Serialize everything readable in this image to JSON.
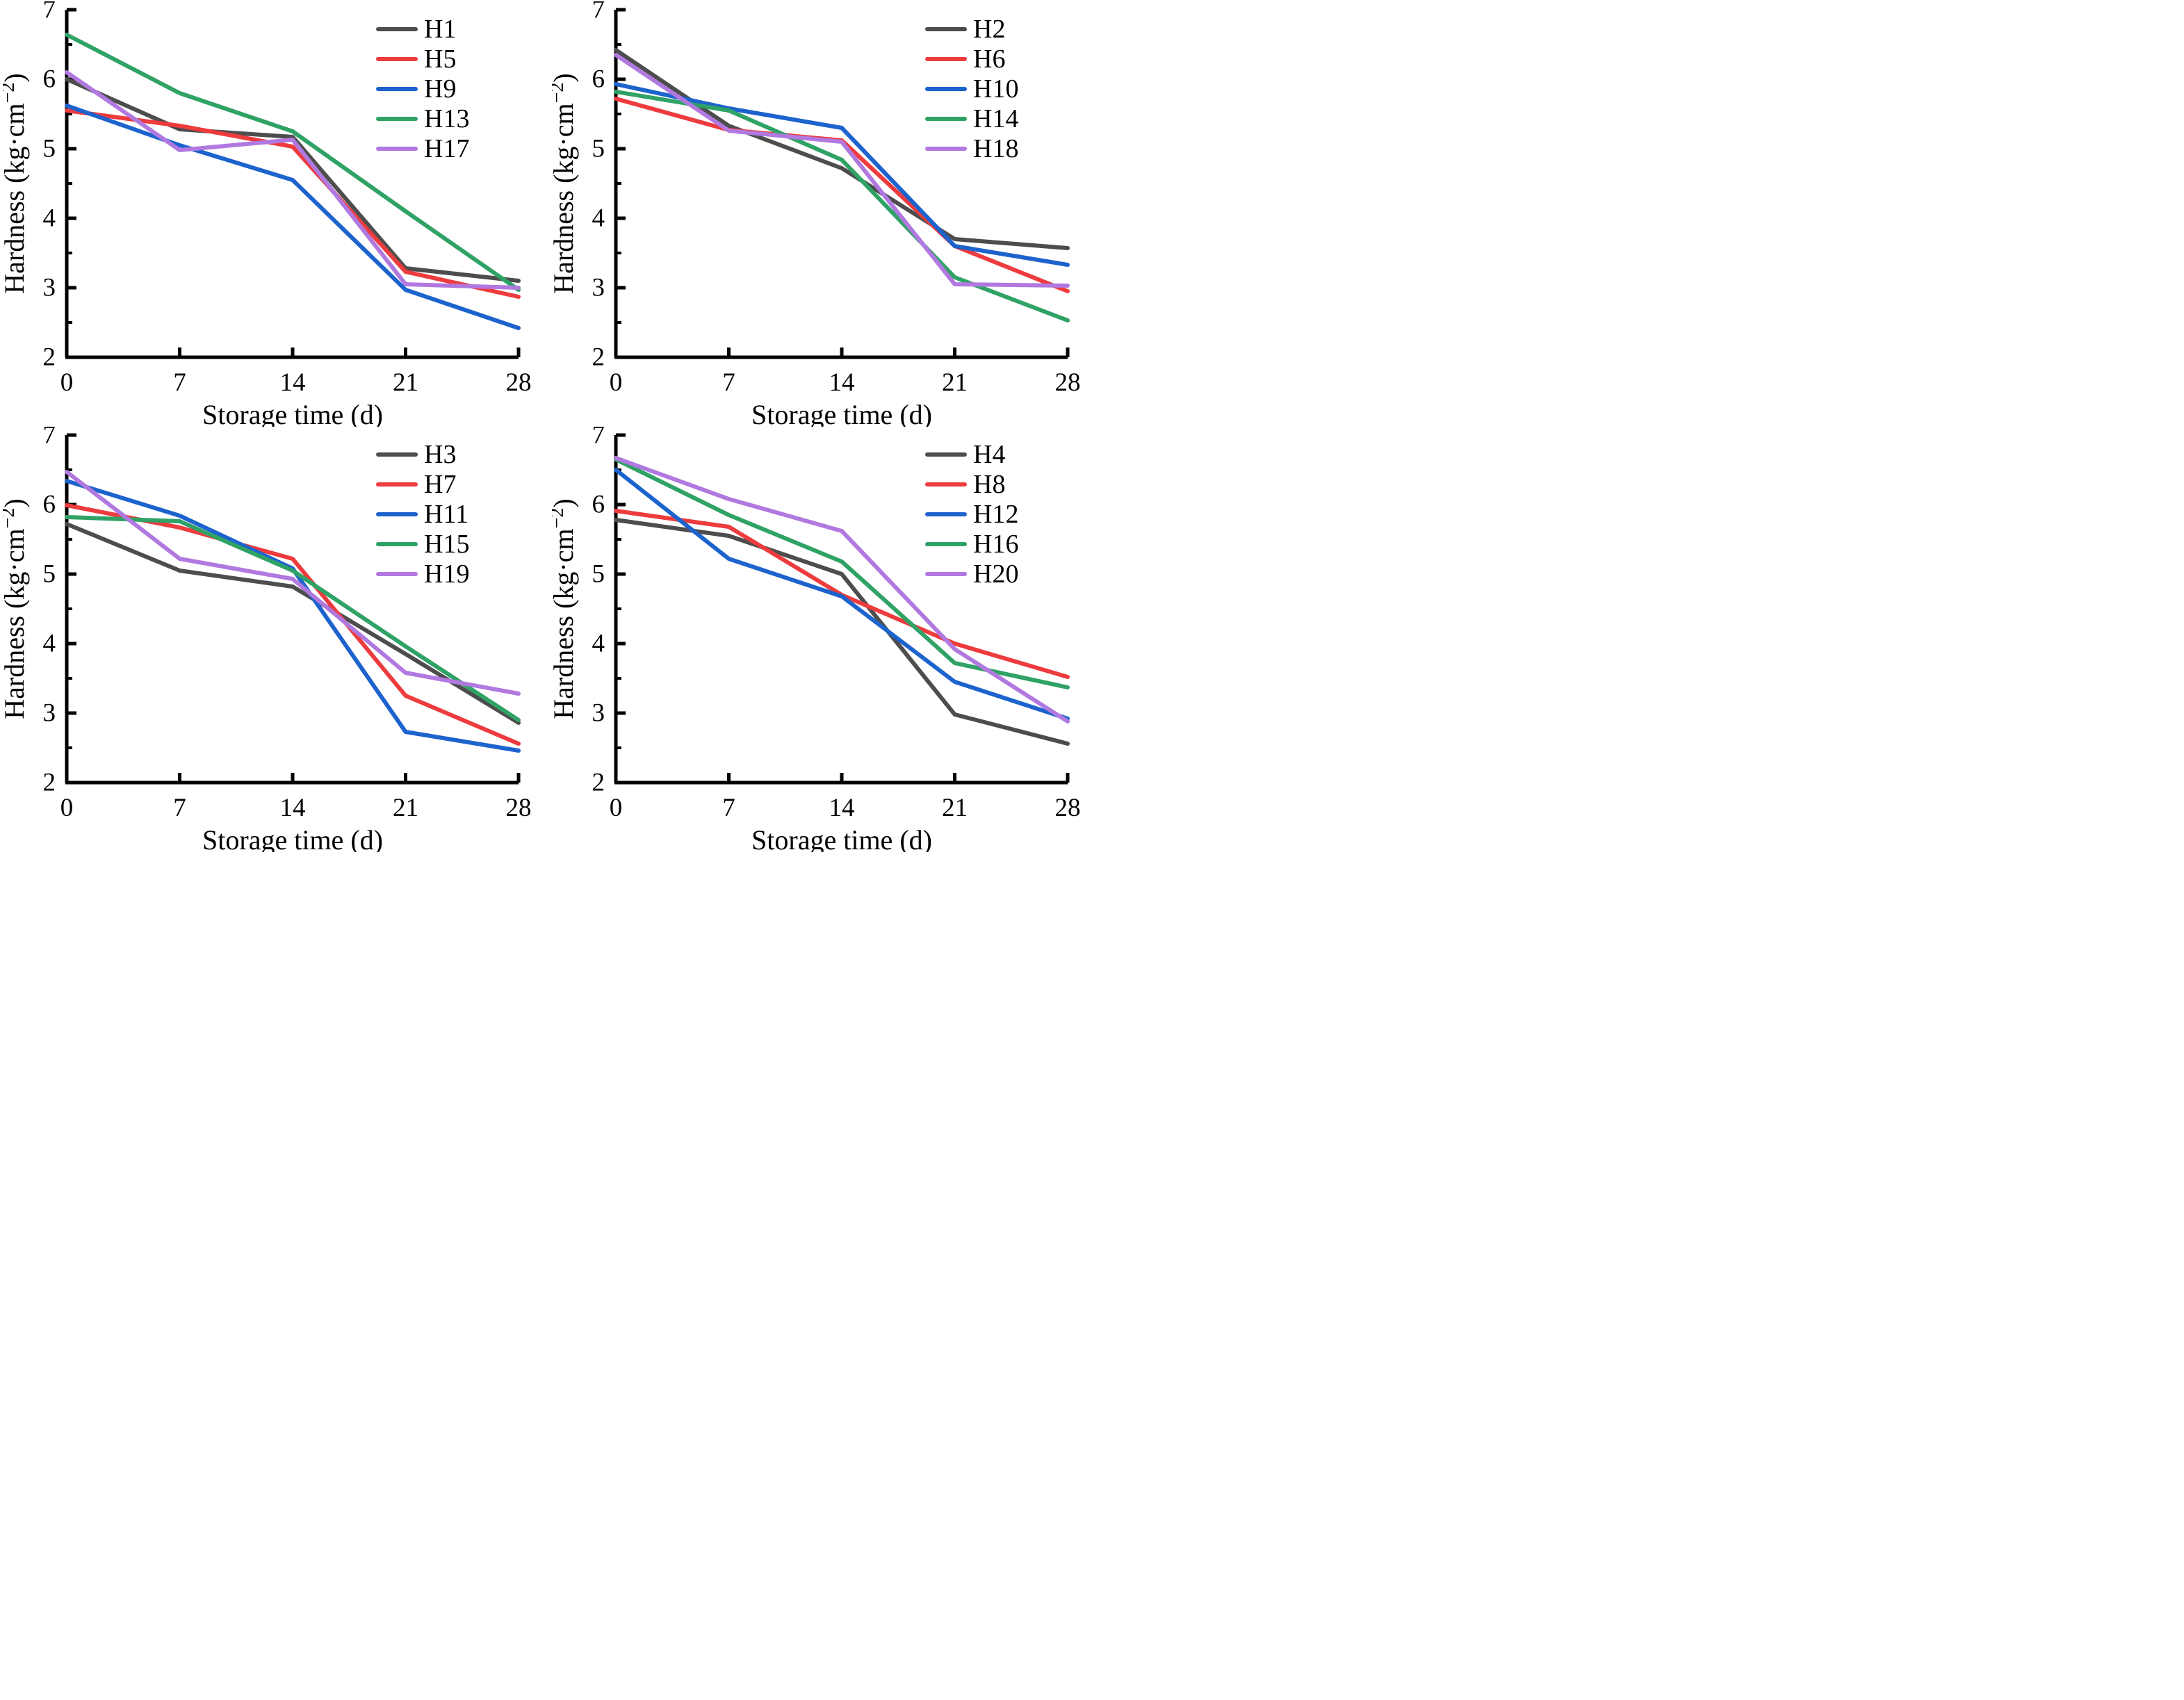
{
  "page": {
    "background": "#ffffff",
    "description": "2x2 grid of line charts of fruit hardness vs storage time for treatments H1-H20"
  },
  "colors": {
    "gray": "#4d4d4d",
    "red": "#ed3b3e",
    "blue": "#1d63cd",
    "green": "#2fa266",
    "purple": "#b179e0",
    "axis": "#000000"
  },
  "axes_config": {
    "xlabel": "Storage time (d)",
    "ylabel_main": "Hardness (kg·cm",
    "ylabel_sup": "−2",
    "ylabel_close": ")",
    "x_ticks": [
      0,
      7,
      14,
      21,
      28
    ],
    "y_ticks": [
      2,
      3,
      4,
      5,
      6,
      7
    ],
    "y_minor_step": 0.5,
    "xlim": [
      0,
      28
    ],
    "ylim": [
      2,
      7
    ],
    "grid": false,
    "legend_position": "top-right-inside"
  },
  "chart_data": [
    {
      "type": "line",
      "panel": "top-left",
      "title": "",
      "x": [
        0,
        7,
        14,
        21,
        28
      ],
      "xlabel": "Storage time (d)",
      "ylabel": "Hardness (kg·cm−2)",
      "xlim": [
        0,
        28
      ],
      "ylim": [
        2,
        7
      ],
      "legend_position": "top-right",
      "series": [
        {
          "name": "H1",
          "color_key": "gray",
          "values": [
            6.0,
            5.28,
            5.17,
            3.28,
            3.1
          ]
        },
        {
          "name": "H5",
          "color_key": "red",
          "values": [
            5.55,
            5.33,
            5.03,
            3.23,
            2.87
          ]
        },
        {
          "name": "H9",
          "color_key": "blue",
          "values": [
            5.62,
            5.05,
            4.55,
            2.97,
            2.42
          ]
        },
        {
          "name": "H13",
          "color_key": "green",
          "values": [
            6.64,
            5.8,
            5.25,
            4.1,
            2.97
          ]
        },
        {
          "name": "H17",
          "color_key": "purple",
          "values": [
            6.1,
            4.98,
            5.13,
            3.05,
            3.0
          ]
        }
      ]
    },
    {
      "type": "line",
      "panel": "top-right",
      "title": "",
      "x": [
        0,
        7,
        14,
        21,
        28
      ],
      "xlabel": "Storage time (d)",
      "ylabel": "Hardness (kg·cm−2)",
      "xlim": [
        0,
        28
      ],
      "ylim": [
        2,
        7
      ],
      "legend_position": "top-right",
      "series": [
        {
          "name": "H2",
          "color_key": "gray",
          "values": [
            6.42,
            5.33,
            4.72,
            3.7,
            3.57
          ]
        },
        {
          "name": "H6",
          "color_key": "red",
          "values": [
            5.72,
            5.27,
            5.12,
            3.6,
            2.95
          ]
        },
        {
          "name": "H10",
          "color_key": "blue",
          "values": [
            5.93,
            5.58,
            5.3,
            3.6,
            3.33
          ]
        },
        {
          "name": "H14",
          "color_key": "green",
          "values": [
            5.82,
            5.55,
            4.84,
            3.15,
            2.53
          ]
        },
        {
          "name": "H18",
          "color_key": "purple",
          "values": [
            6.35,
            5.26,
            5.1,
            3.05,
            3.03
          ]
        }
      ]
    },
    {
      "type": "line",
      "panel": "bottom-left",
      "title": "",
      "x": [
        0,
        7,
        14,
        21,
        28
      ],
      "xlabel": "Storage time (d)",
      "ylabel": "Hardness (kg·cm−2)",
      "xlim": [
        0,
        28
      ],
      "ylim": [
        2,
        7
      ],
      "legend_position": "top-right",
      "series": [
        {
          "name": "H3",
          "color_key": "gray",
          "values": [
            5.72,
            5.05,
            4.82,
            3.85,
            2.86
          ]
        },
        {
          "name": "H7",
          "color_key": "red",
          "values": [
            5.99,
            5.67,
            5.22,
            3.25,
            2.56
          ]
        },
        {
          "name": "H11",
          "color_key": "blue",
          "values": [
            6.34,
            5.84,
            5.08,
            2.73,
            2.46
          ]
        },
        {
          "name": "H15",
          "color_key": "green",
          "values": [
            5.82,
            5.76,
            5.05,
            3.96,
            2.9
          ]
        },
        {
          "name": "H19",
          "color_key": "purple",
          "values": [
            6.47,
            5.22,
            4.93,
            3.58,
            3.28
          ]
        }
      ]
    },
    {
      "type": "line",
      "panel": "bottom-right",
      "title": "",
      "x": [
        0,
        7,
        14,
        21,
        28
      ],
      "xlabel": "Storage time (d)",
      "ylabel": "Hardness (kg·cm−2)",
      "xlim": [
        0,
        28
      ],
      "ylim": [
        2,
        7
      ],
      "legend_position": "top-right",
      "series": [
        {
          "name": "H4",
          "color_key": "gray",
          "values": [
            5.78,
            5.55,
            5.0,
            2.98,
            2.56
          ]
        },
        {
          "name": "H8",
          "color_key": "red",
          "values": [
            5.91,
            5.68,
            4.7,
            4.0,
            3.52
          ]
        },
        {
          "name": "H12",
          "color_key": "blue",
          "values": [
            6.5,
            5.22,
            4.68,
            3.45,
            2.92
          ]
        },
        {
          "name": "H16",
          "color_key": "green",
          "values": [
            6.65,
            5.85,
            5.18,
            3.72,
            3.37
          ]
        },
        {
          "name": "H20",
          "color_key": "purple",
          "values": [
            6.67,
            6.08,
            5.62,
            3.92,
            2.88
          ]
        }
      ]
    }
  ]
}
